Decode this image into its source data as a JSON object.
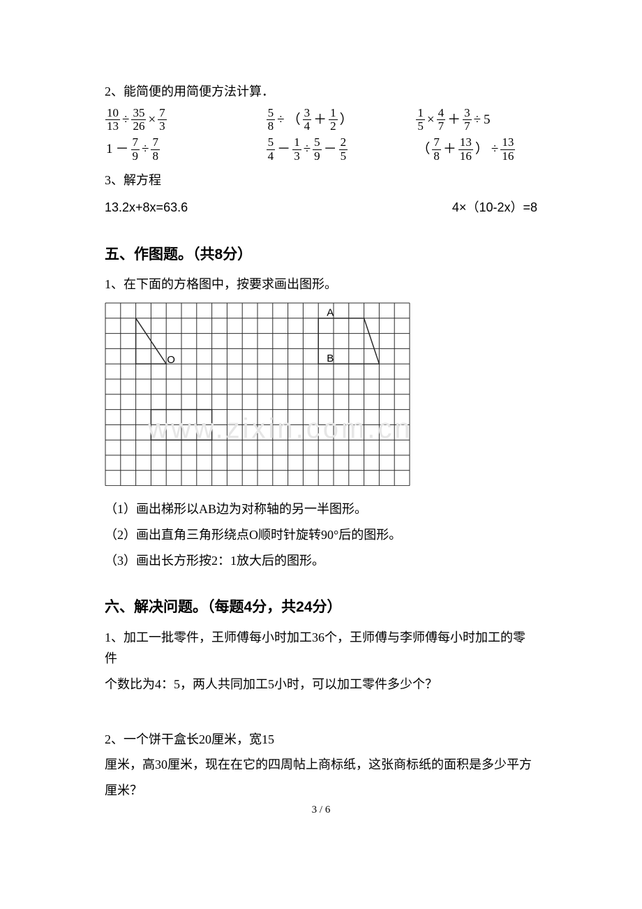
{
  "q2": {
    "heading": "2、能简便的用简便方法计算．",
    "row1": {
      "c1": [
        [
          "10",
          "13"
        ],
        "÷",
        [
          "35",
          "26"
        ],
        "×",
        [
          "7",
          "3"
        ]
      ],
      "c2": [
        [
          "5",
          "8"
        ],
        "÷",
        "（",
        [
          "3",
          "4"
        ],
        "＋",
        [
          "1",
          "2"
        ],
        "）"
      ],
      "c3": [
        [
          "1",
          "5"
        ],
        "×",
        [
          "4",
          "7"
        ],
        "＋",
        [
          "3",
          "7"
        ],
        "÷",
        "5"
      ]
    },
    "row2": {
      "c1": [
        "1",
        "－",
        [
          "7",
          "9"
        ],
        "÷",
        [
          "7",
          "8"
        ]
      ],
      "c2": [
        [
          "5",
          "4"
        ],
        "－",
        [
          "1",
          "3"
        ],
        "÷",
        [
          "5",
          "9"
        ],
        "－",
        [
          "2",
          "5"
        ]
      ],
      "c3": [
        "（",
        [
          "7",
          "8"
        ],
        "＋",
        [
          "13",
          "16"
        ],
        "）",
        "÷",
        [
          "13",
          "16"
        ]
      ]
    }
  },
  "q3": {
    "heading": "3、解方程",
    "eq1": "13.2x+8x=63.6",
    "eq2": "4×（10-2x）=8"
  },
  "section5": {
    "title": "五、作图题。（共8分）",
    "q1": "1、在下面的方格图中，按要求画出图形。",
    "grid": {
      "cols": 20,
      "rows": 12,
      "cell": 21.8,
      "stroke": "#2b2b2b",
      "strokeWidth": 1,
      "labels": {
        "A": {
          "col": 14.55,
          "row": 0.85
        },
        "B": {
          "col": 14.55,
          "row": 3.85
        },
        "O": {
          "col": 4.05,
          "row": 3.95
        }
      },
      "trapezoid": {
        "points": [
          [
            14,
            1
          ],
          [
            14,
            4
          ],
          [
            18,
            4
          ],
          [
            17,
            1
          ]
        ],
        "stroke": "#2b2b2b",
        "width": 1.5
      },
      "triangle": {
        "points": [
          [
            2,
            1
          ],
          [
            2,
            4
          ],
          [
            4,
            4
          ]
        ],
        "stroke": "#2b2b2b",
        "width": 1.5
      },
      "rect": {
        "points": [
          [
            3,
            7
          ],
          [
            7,
            7
          ],
          [
            7,
            9
          ],
          [
            3,
            9
          ]
        ],
        "stroke": "#2b2b2b",
        "width": 1.5
      }
    },
    "sub1": "（1）画出梯形以AB边为对称轴的另一半图形。",
    "sub2": "（2）画出直角三角形绕点O顺时针旋转90°后的图形。",
    "sub3": "（3）画出长方形按2：1放大后的图形。"
  },
  "section6": {
    "title": "六、解决问题。（每题4分，共24分）",
    "q1a": "1、加工一批零件，王师傅每小时加工36个，王师傅与李师傅每小时加工的零件",
    "q1b": "个数比为4：5，两人共同加工5小时，可以加工零件多少个？",
    "q2a": "2、一个饼干盒长20厘米，宽15",
    "q2b": "厘米，高30厘米，现在在它的四周帖上商标纸，这张商标纸的面积是多少平方",
    "q2c": "厘米？"
  },
  "pageNum": "3 / 6",
  "watermark": "www.zixin.com.cn"
}
